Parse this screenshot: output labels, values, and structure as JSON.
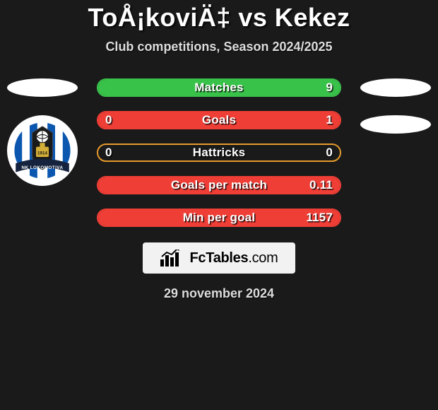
{
  "title": "ToÅ¡koviÄ‡ vs Kekez",
  "subtitle": "Club competitions, Season 2024/2025",
  "date": "29 november 2024",
  "footer_brand": {
    "bold": "FcTables",
    "light": ".com"
  },
  "colors": {
    "background": "#1a1a1a",
    "flag": "#ffffff",
    "footer_bg": "#f2f2f2",
    "footer_text": "#000000"
  },
  "left_club_logo": {
    "circle_color": "#ffffff",
    "stripes_color": "#0b57b0",
    "banner_color": "#15233e",
    "banner_text": "NK LOKOMOTIVA",
    "year_text": "1914"
  },
  "rows": [
    {
      "label": "Matches",
      "left_value": "",
      "right_value": "9",
      "color": "#39c24a",
      "left_fill_pct": 100,
      "right_fill_pct": 0
    },
    {
      "label": "Goals",
      "left_value": "0",
      "right_value": "1",
      "color": "#ef3e36",
      "left_fill_pct": 0,
      "right_fill_pct": 100
    },
    {
      "label": "Hattricks",
      "left_value": "0",
      "right_value": "0",
      "color": "#e59a2c",
      "left_fill_pct": 0,
      "right_fill_pct": 0
    },
    {
      "label": "Goals per match",
      "left_value": "",
      "right_value": "0.11",
      "color": "#ef3e36",
      "left_fill_pct": 0,
      "right_fill_pct": 100
    },
    {
      "label": "Min per goal",
      "left_value": "",
      "right_value": "1157",
      "color": "#ef3e36",
      "left_fill_pct": 0,
      "right_fill_pct": 100
    }
  ]
}
